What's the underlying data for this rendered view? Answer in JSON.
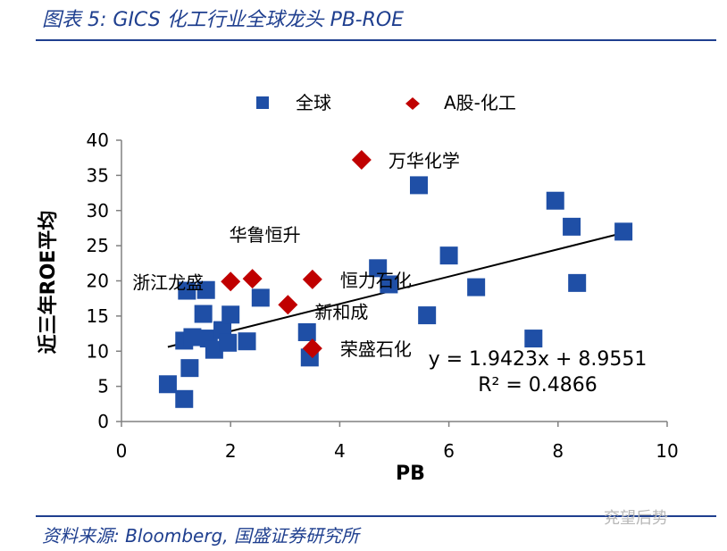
{
  "header": {
    "title": "图表 5:  GICS 化工行业全球龙头 PB-ROE"
  },
  "footer": {
    "source": "资料来源:  Bloomberg,  国盛证券研究所",
    "watermark": "兖望后势"
  },
  "colors": {
    "global": "#1f4fa6",
    "a_share": "#c00000",
    "accent": "#1f3f8f"
  },
  "chart_data": {
    "type": "scatter",
    "xlabel": "PB",
    "ylabel": "近三年ROE平均",
    "xlim": [
      0,
      10
    ],
    "ylim": [
      0,
      40
    ],
    "xticks": [
      "0",
      "2",
      "4",
      "6",
      "8",
      "10"
    ],
    "yticks": [
      "0",
      "5",
      "10",
      "15",
      "20",
      "25",
      "30",
      "35",
      "40"
    ],
    "legend": {
      "placement": "top",
      "entries": [
        "全球",
        "A股-化工"
      ]
    },
    "series": [
      {
        "name": "全球",
        "marker": "square",
        "x": [
          0.85,
          1.15,
          1.25,
          1.15,
          1.3,
          1.5,
          1.6,
          1.7,
          1.85,
          2.0,
          1.95,
          2.3,
          2.55,
          1.2,
          1.55,
          3.4,
          3.45,
          4.7,
          4.9,
          5.45,
          5.6,
          6.0,
          6.5,
          7.55,
          7.95,
          8.25,
          8.35,
          9.2
        ],
        "y": [
          5.3,
          3.2,
          7.6,
          11.5,
          12.0,
          15.3,
          11.8,
          10.2,
          13.0,
          15.2,
          11.2,
          11.4,
          17.6,
          18.6,
          18.7,
          12.7,
          9.1,
          21.8,
          19.5,
          33.6,
          15.1,
          23.6,
          19.1,
          11.8,
          31.4,
          27.7,
          19.7,
          27.0
        ]
      },
      {
        "name": "A股-化工",
        "marker": "diamond",
        "x": [
          4.4,
          2.0,
          2.4,
          3.05,
          3.5,
          3.5
        ],
        "y": [
          37.2,
          19.9,
          20.3,
          16.6,
          20.2,
          10.4
        ]
      }
    ],
    "annotations": [
      {
        "text": "万华化学",
        "x": 4.4,
        "y": 37.2
      },
      {
        "text": "华鲁恒升",
        "x": 2.4,
        "y": 20.3
      },
      {
        "text": "浙江龙盛",
        "x": 2.0,
        "y": 19.9
      },
      {
        "text": "恒力石化",
        "x": 3.5,
        "y": 20.2
      },
      {
        "text": "新和成",
        "x": 3.05,
        "y": 16.6
      },
      {
        "text": "荣盛石化",
        "x": 3.5,
        "y": 10.4
      }
    ],
    "trendline": {
      "slope": 1.9423,
      "intercept": 8.9551,
      "x_range": [
        0.85,
        9.2
      ],
      "equation": "y = 1.9423x + 8.9551",
      "r2": "R² = 0.4866"
    }
  }
}
